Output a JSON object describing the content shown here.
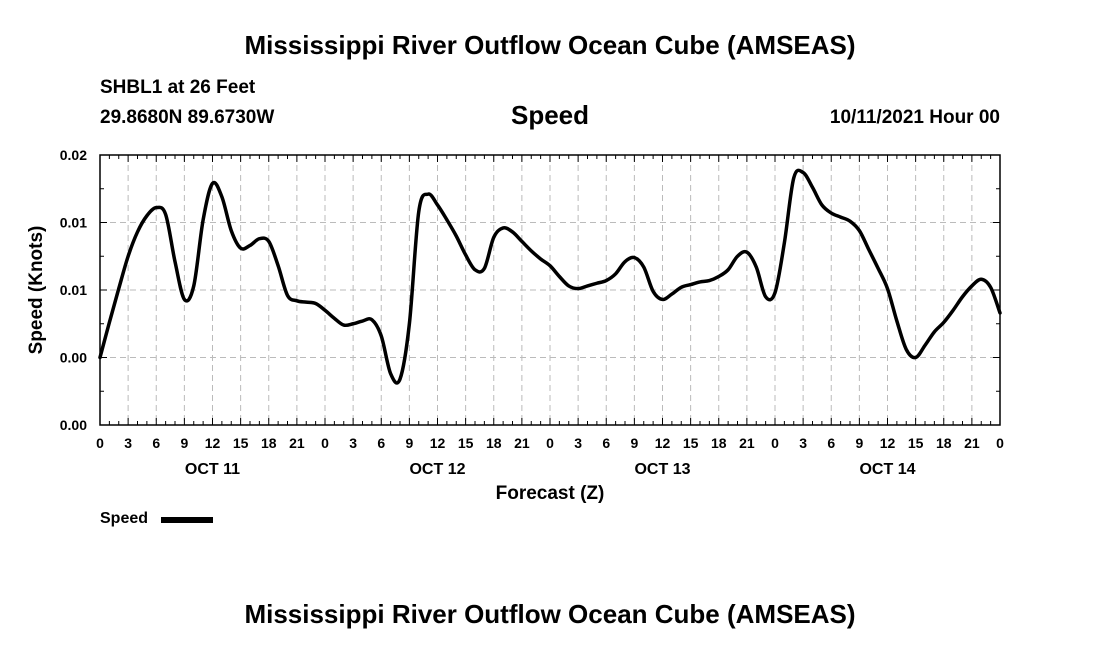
{
  "header": {
    "title": "Mississippi River Outflow Ocean Cube (AMSEAS)",
    "station": "SHBL1 at 26 Feet",
    "coordinates": "29.8680N  89.6730W",
    "variable": "Speed",
    "datetime": "10/11/2021 Hour 00"
  },
  "footer": {
    "title": "Mississippi River Outflow Ocean Cube (AMSEAS)"
  },
  "legend": {
    "label": "Speed"
  },
  "chart_data": {
    "type": "line",
    "title": "Speed",
    "xlabel": "Forecast (Z)",
    "ylabel": "Speed (Knots)",
    "x_unit": "forecast hour",
    "xlim": [
      0,
      96
    ],
    "ylim": [
      0,
      0.02
    ],
    "x_ticks": [
      0,
      3,
      6,
      9,
      12,
      15,
      18,
      21,
      24,
      27,
      30,
      33,
      36,
      39,
      42,
      45,
      48,
      51,
      54,
      57,
      60,
      63,
      66,
      69,
      72,
      75,
      78,
      81,
      84,
      87,
      90,
      93,
      96
    ],
    "x_tick_labels": [
      "0",
      "3",
      "6",
      "9",
      "12",
      "15",
      "18",
      "21",
      "0",
      "3",
      "6",
      "9",
      "12",
      "15",
      "18",
      "21",
      "0",
      "3",
      "6",
      "9",
      "12",
      "15",
      "18",
      "21",
      "0",
      "3",
      "6",
      "9",
      "12",
      "15",
      "18",
      "21",
      "0"
    ],
    "date_labels": [
      {
        "hour": 12,
        "label": "OCT 11"
      },
      {
        "hour": 36,
        "label": "OCT 12"
      },
      {
        "hour": 60,
        "label": "OCT 13"
      },
      {
        "hour": 84,
        "label": "OCT 14"
      }
    ],
    "y_ticks": [
      0,
      0.005,
      0.01,
      0.015,
      0.02
    ],
    "y_tick_labels": [
      "0.00",
      "0.00",
      "0.01",
      "0.01",
      "0.02"
    ],
    "grid": true,
    "series": [
      {
        "name": "Speed",
        "color": "#000000",
        "x": [
          0,
          1,
          2,
          3,
          4,
          5,
          6,
          7,
          8,
          9,
          10,
          11,
          12,
          13,
          14,
          15,
          16,
          17,
          18,
          19,
          20,
          21,
          22,
          23,
          24,
          25,
          26,
          27,
          28,
          29,
          30,
          31,
          32,
          33,
          34,
          35,
          36,
          37,
          38,
          39,
          40,
          41,
          42,
          43,
          44,
          45,
          46,
          47,
          48,
          49,
          50,
          51,
          52,
          53,
          54,
          55,
          56,
          57,
          58,
          59,
          60,
          61,
          62,
          63,
          64,
          65,
          66,
          67,
          68,
          69,
          70,
          71,
          72,
          73,
          74,
          75,
          76,
          77,
          78,
          79,
          80,
          81,
          82,
          83,
          84,
          85,
          86,
          87,
          88,
          89,
          90,
          91,
          92,
          93,
          94,
          95,
          96
        ],
        "y": [
          0.005,
          0.0076,
          0.0101,
          0.0125,
          0.0143,
          0.0155,
          0.0161,
          0.0156,
          0.0121,
          0.0093,
          0.0103,
          0.0152,
          0.0179,
          0.0169,
          0.0144,
          0.0131,
          0.0133,
          0.0138,
          0.0136,
          0.0118,
          0.0096,
          0.0092,
          0.0091,
          0.009,
          0.0085,
          0.0079,
          0.0074,
          0.0075,
          0.0077,
          0.0078,
          0.0066,
          0.0038,
          0.0034,
          0.0075,
          0.0158,
          0.0171,
          0.0163,
          0.0152,
          0.014,
          0.0126,
          0.0115,
          0.0116,
          0.0139,
          0.0146,
          0.0143,
          0.0136,
          0.0129,
          0.0123,
          0.0118,
          0.011,
          0.0103,
          0.0101,
          0.0103,
          0.0105,
          0.0107,
          0.0112,
          0.0121,
          0.0124,
          0.0117,
          0.0099,
          0.0093,
          0.0097,
          0.0102,
          0.0104,
          0.0106,
          0.0107,
          0.011,
          0.0115,
          0.0125,
          0.0128,
          0.0117,
          0.0095,
          0.0098,
          0.0135,
          0.0183,
          0.0187,
          0.0176,
          0.0163,
          0.0157,
          0.0154,
          0.0151,
          0.0144,
          0.013,
          0.0116,
          0.0101,
          0.0077,
          0.0056,
          0.005,
          0.0059,
          0.0069,
          0.0076,
          0.0085,
          0.0095,
          0.0103,
          0.0108,
          0.0102,
          0.0083
        ]
      }
    ]
  }
}
